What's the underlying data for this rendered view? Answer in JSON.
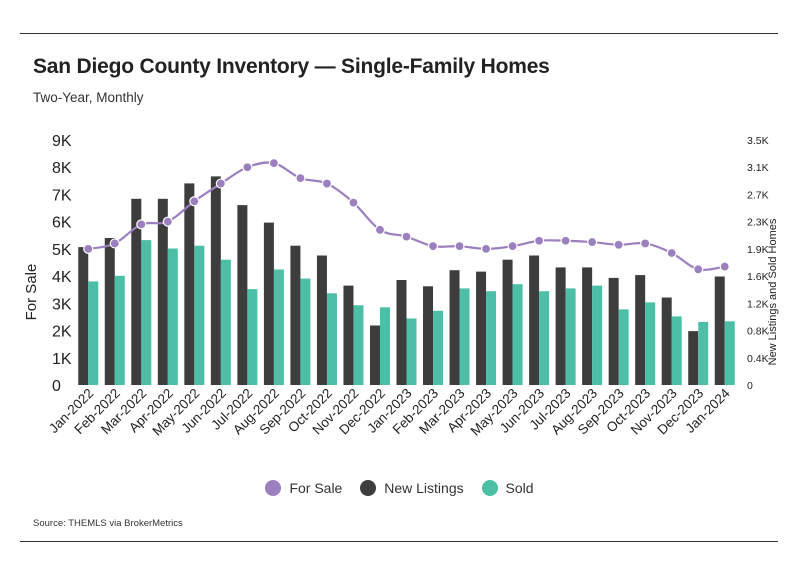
{
  "header": {
    "title": "San Diego County Inventory — Single-Family Homes",
    "subtitle": "Two-Year, Monthly"
  },
  "footer": {
    "source": "Source:  THEMLS via BrokerMetrics"
  },
  "colors": {
    "for_sale": "#9b7fbf",
    "new_listings": "#3d3d3d",
    "sold": "#4dbfa6"
  },
  "chart_data": {
    "type": "bar",
    "ylabel_left": "For Sale",
    "ylabel_right": "New Listings and Sold Homes",
    "ylim_left": [
      0,
      9000
    ],
    "ylim_right": [
      0,
      3500
    ],
    "left_ticks": [
      "0",
      "1K",
      "2K",
      "3K",
      "4K",
      "5K",
      "6K",
      "7K",
      "8K",
      "9K"
    ],
    "right_ticks": [
      "0",
      "0.4K",
      "0.8K",
      "1.2K",
      "1.6K",
      "1.9K",
      "2.3K",
      "2.7K",
      "3.1K",
      "3.5K"
    ],
    "categories": [
      "Jan-2022",
      "Feb-2022",
      "Mar-2022",
      "Apr-2022",
      "May-2022",
      "Jun-2022",
      "Jul-2022",
      "Aug-2022",
      "Sep-2022",
      "Oct-2022",
      "Nov-2022",
      "Dec-2022",
      "Jan-2023",
      "Feb-2023",
      "Mar-2023",
      "Apr-2023",
      "May-2023",
      "Jun-2023",
      "Jul-2023",
      "Aug-2023",
      "Sep-2023",
      "Oct-2023",
      "Nov-2023",
      "Dec-2023",
      "Jan-2024"
    ],
    "legend": [
      "For Sale",
      "New Listings",
      "Sold"
    ],
    "legend_position": "bottom",
    "series": [
      {
        "name": "For Sale",
        "type": "line",
        "axis": "left",
        "values": [
          5000,
          5200,
          5900,
          6000,
          6750,
          7400,
          8000,
          8150,
          7600,
          7400,
          6700,
          5700,
          5450,
          5100,
          5100,
          5000,
          5100,
          5300,
          5300,
          5250,
          5150,
          5200,
          4850,
          4250,
          4350
        ]
      },
      {
        "name": "New Listings",
        "type": "bar",
        "axis": "right",
        "values": [
          1970,
          2100,
          2660,
          2660,
          2880,
          2980,
          2570,
          2320,
          1990,
          1850,
          1420,
          850,
          1500,
          1410,
          1640,
          1620,
          1790,
          1850,
          1680,
          1680,
          1530,
          1570,
          1250,
          770,
          1550
        ]
      },
      {
        "name": "Sold",
        "type": "bar",
        "axis": "right",
        "values": [
          1480,
          1560,
          2070,
          1950,
          1990,
          1790,
          1370,
          1650,
          1520,
          1310,
          1140,
          1110,
          950,
          1060,
          1380,
          1340,
          1440,
          1340,
          1380,
          1420,
          1080,
          1180,
          980,
          900,
          910
        ]
      }
    ]
  }
}
